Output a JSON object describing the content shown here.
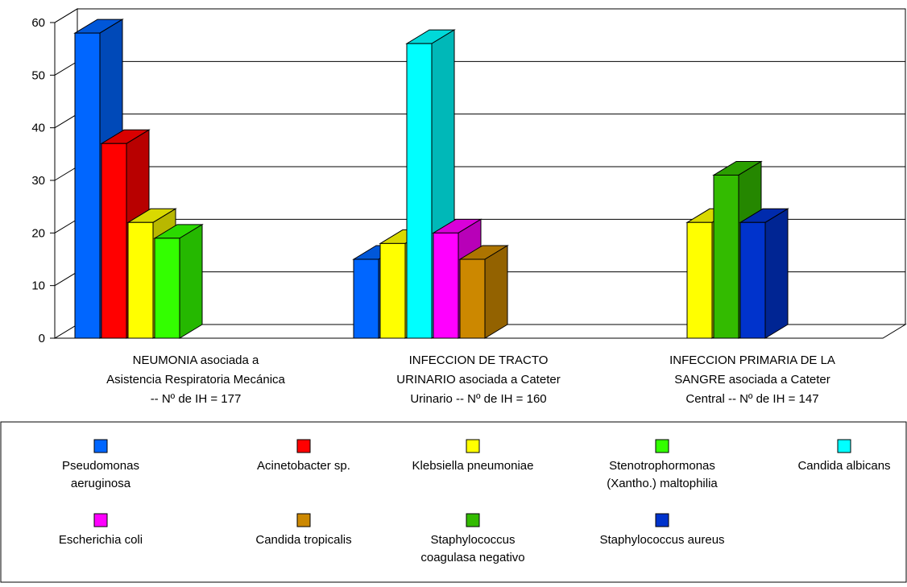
{
  "chart_data": {
    "type": "bar",
    "title": "",
    "xlabel": "",
    "ylabel": "",
    "ylim": [
      0,
      60
    ],
    "yticks": [
      0,
      10,
      20,
      30,
      40,
      50,
      60
    ],
    "grid": true,
    "legend_position": "bottom",
    "categories": [
      "NEUMONIA asociada a\nAsistencia Respiratoria Mecánica\n--  Nº de IH = 177",
      "INFECCION DE TRACTO\nURINARIO asociada a Cateter\nUrinario  --  Nº de IH = 160",
      "INFECCION PRIMARIA DE LA\nSANGRE asociada a Cateter\nCentral  --  Nº de IH = 147"
    ],
    "series": [
      {
        "name": "Pseudomonas\naeruginosa",
        "color": "#0066ff",
        "values": [
          58,
          15,
          null
        ]
      },
      {
        "name": "Acinetobacter sp.",
        "color": "#ff0000",
        "values": [
          37,
          null,
          null
        ]
      },
      {
        "name": "Klebsiella pneumoniae",
        "color": "#ffff00",
        "values": [
          22,
          18,
          22
        ]
      },
      {
        "name": "Stenotrophormonas\n(Xantho.) maltophilia",
        "color": "#33ff00",
        "values": [
          19,
          null,
          null
        ]
      },
      {
        "name": "Candida albicans",
        "color": "#00ffff",
        "values": [
          null,
          56,
          null
        ]
      },
      {
        "name": "Escherichia coli",
        "color": "#ff00ff",
        "values": [
          null,
          20,
          null
        ]
      },
      {
        "name": "Candida tropicalis",
        "color": "#cc8800",
        "values": [
          null,
          15,
          null
        ]
      },
      {
        "name": "Staphylococcus\ncoagulasa negativo",
        "color": "#33bb00",
        "values": [
          null,
          null,
          31
        ]
      },
      {
        "name": "Staphylococcus aureus",
        "color": "#0033cc",
        "values": [
          null,
          null,
          22
        ]
      }
    ]
  }
}
